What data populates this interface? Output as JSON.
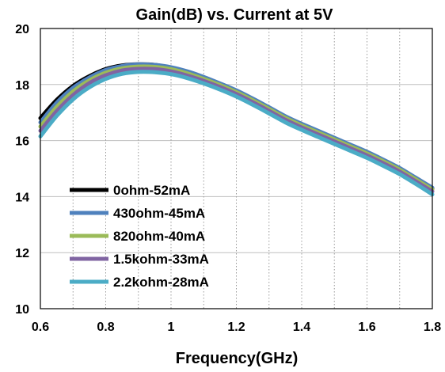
{
  "chart_data": {
    "type": "line",
    "title": "Gain(dB) vs. Current at 5V",
    "xlabel": "Frequency(GHz)",
    "ylabel": "",
    "xlim": [
      0.6,
      1.8
    ],
    "ylim": [
      10,
      20
    ],
    "xticks": [
      "0.6",
      "0.8",
      "1",
      "1.2",
      "1.4",
      "1.6",
      "1.8"
    ],
    "yticks": [
      "10",
      "12",
      "14",
      "16",
      "18",
      "20"
    ],
    "x_grid": "dotted",
    "y_grid": "solid",
    "legend_position": "bottom-left",
    "x": [
      0.6,
      0.65,
      0.7,
      0.75,
      0.8,
      0.85,
      0.9,
      0.95,
      1.0,
      1.05,
      1.1,
      1.15,
      1.2,
      1.25,
      1.3,
      1.35,
      1.4,
      1.45,
      1.5,
      1.55,
      1.6,
      1.65,
      1.7,
      1.75,
      1.8
    ],
    "series": [
      {
        "name": "0ohm-52mA",
        "color": "#000000",
        "values": [
          16.8,
          17.45,
          17.95,
          18.3,
          18.55,
          18.68,
          18.72,
          18.7,
          18.6,
          18.45,
          18.25,
          18.02,
          17.77,
          17.48,
          17.17,
          16.85,
          16.58,
          16.33,
          16.08,
          15.83,
          15.58,
          15.3,
          15.0,
          14.65,
          14.3
        ]
      },
      {
        "name": "430ohm-45mA",
        "color": "#4f81bd",
        "values": [
          16.65,
          17.35,
          17.88,
          18.25,
          18.52,
          18.66,
          18.72,
          18.7,
          18.62,
          18.47,
          18.27,
          18.04,
          17.79,
          17.5,
          17.19,
          16.87,
          16.6,
          16.35,
          16.1,
          15.85,
          15.6,
          15.32,
          15.02,
          14.67,
          14.32
        ]
      },
      {
        "name": "820ohm-40mA",
        "color": "#9bbb59",
        "values": [
          16.5,
          17.2,
          17.75,
          18.15,
          18.42,
          18.58,
          18.64,
          18.63,
          18.55,
          18.4,
          18.2,
          17.98,
          17.73,
          17.44,
          17.13,
          16.81,
          16.54,
          16.29,
          16.04,
          15.79,
          15.54,
          15.26,
          14.96,
          14.61,
          14.25
        ]
      },
      {
        "name": "1.5kohm-33mA",
        "color": "#8064a2",
        "values": [
          16.35,
          17.05,
          17.62,
          18.05,
          18.33,
          18.5,
          18.56,
          18.55,
          18.47,
          18.32,
          18.13,
          17.91,
          17.66,
          17.37,
          17.06,
          16.74,
          16.47,
          16.22,
          15.97,
          15.72,
          15.47,
          15.19,
          14.89,
          14.54,
          14.18
        ]
      },
      {
        "name": "2.2kohm-28mA",
        "color": "#4bacc6",
        "values": [
          16.15,
          16.88,
          17.47,
          17.9,
          18.2,
          18.38,
          18.45,
          18.44,
          18.37,
          18.23,
          18.04,
          17.82,
          17.57,
          17.28,
          16.97,
          16.65,
          16.38,
          16.13,
          15.88,
          15.63,
          15.38,
          15.1,
          14.8,
          14.45,
          14.08
        ]
      }
    ]
  }
}
